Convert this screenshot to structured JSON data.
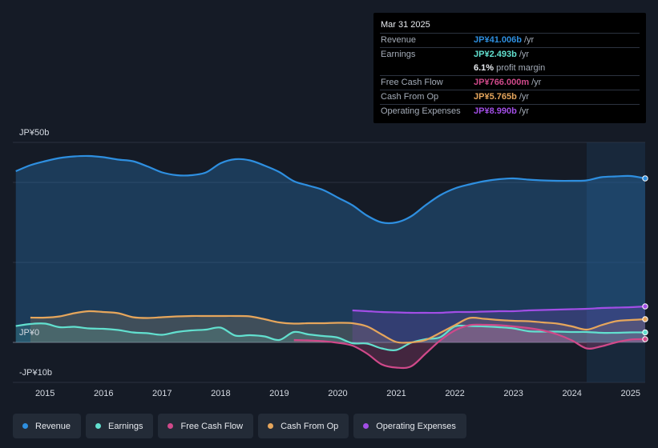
{
  "tooltip": {
    "date": "Mar 31 2025",
    "rows": [
      {
        "label": "Revenue",
        "value": "JP¥41.006b",
        "unit": "/yr",
        "color": "#2e8fe0"
      },
      {
        "label": "Earnings",
        "value": "JP¥2.493b",
        "unit": "/yr",
        "color": "#62e0cf"
      },
      {
        "label": "",
        "value": "6.1%",
        "unit": "profit margin",
        "color": "#e8ebf0"
      },
      {
        "label": "Free Cash Flow",
        "value": "JP¥766.000m",
        "unit": "/yr",
        "color": "#d0498a"
      },
      {
        "label": "Cash From Op",
        "value": "JP¥5.765b",
        "unit": "/yr",
        "color": "#e6a65c"
      },
      {
        "label": "Operating Expenses",
        "value": "JP¥8.990b",
        "unit": "/yr",
        "color": "#a24ee6"
      }
    ]
  },
  "legend": [
    {
      "label": "Revenue",
      "color": "#2e8fe0"
    },
    {
      "label": "Earnings",
      "color": "#62e0cf"
    },
    {
      "label": "Free Cash Flow",
      "color": "#d0498a"
    },
    {
      "label": "Cash From Op",
      "color": "#e6a65c"
    },
    {
      "label": "Operating Expenses",
      "color": "#a24ee6"
    }
  ],
  "chart_data": {
    "type": "area",
    "unit": "JP¥ billions",
    "y_tick_labels": [
      {
        "value": 50,
        "label": "JP¥50b"
      },
      {
        "value": 0,
        "label": "JP¥0"
      },
      {
        "value": -10,
        "label": "-JP¥10b"
      }
    ],
    "ylim": [
      -10,
      50
    ],
    "x_ticks": [
      {
        "value": 2015.0,
        "label": "2015"
      },
      {
        "value": 2016.0,
        "label": "2016"
      },
      {
        "value": 2017.0,
        "label": "2017"
      },
      {
        "value": 2018.0,
        "label": "2018"
      },
      {
        "value": 2019.0,
        "label": "2019"
      },
      {
        "value": 2020.0,
        "label": "2020"
      },
      {
        "value": 2021.0,
        "label": "2021"
      },
      {
        "value": 2022.0,
        "label": "2022"
      },
      {
        "value": 2023.0,
        "label": "2023"
      },
      {
        "value": 2024.0,
        "label": "2024"
      },
      {
        "value": 2025.0,
        "label": "2025"
      }
    ],
    "xlim": [
      2014.45,
      2025.25
    ],
    "forecast_start": 2024.25,
    "series": [
      {
        "name": "Revenue",
        "color": "#2e8fe0",
        "x": [
          2014.5,
          2014.75,
          2015.0,
          2015.25,
          2015.5,
          2015.75,
          2016.0,
          2016.25,
          2016.5,
          2016.75,
          2017.0,
          2017.25,
          2017.5,
          2017.75,
          2018.0,
          2018.25,
          2018.5,
          2018.75,
          2019.0,
          2019.25,
          2019.5,
          2019.75,
          2020.0,
          2020.25,
          2020.5,
          2020.75,
          2021.0,
          2021.25,
          2021.5,
          2021.75,
          2022.0,
          2022.25,
          2022.5,
          2022.75,
          2023.0,
          2023.25,
          2023.5,
          2023.75,
          2024.0,
          2024.25,
          2024.5,
          2024.75,
          2025.0,
          2025.25
        ],
        "values": [
          42.8,
          44.3,
          45.3,
          46.1,
          46.5,
          46.6,
          46.3,
          45.7,
          45.3,
          44.0,
          42.5,
          41.8,
          41.8,
          42.5,
          44.8,
          45.8,
          45.5,
          44.2,
          42.6,
          40.3,
          39.2,
          38.1,
          36.2,
          34.3,
          31.7,
          30.0,
          30.0,
          31.5,
          34.3,
          36.8,
          38.5,
          39.5,
          40.3,
          40.8,
          41.0,
          40.7,
          40.5,
          40.4,
          40.4,
          40.5,
          41.3,
          41.5,
          41.6,
          41.0
        ]
      },
      {
        "name": "Earnings",
        "color": "#62e0cf",
        "x": [
          2014.5,
          2014.75,
          2015.0,
          2015.25,
          2015.5,
          2015.75,
          2016.0,
          2016.25,
          2016.5,
          2016.75,
          2017.0,
          2017.25,
          2017.5,
          2017.75,
          2018.0,
          2018.25,
          2018.5,
          2018.75,
          2019.0,
          2019.25,
          2019.5,
          2019.75,
          2020.0,
          2020.25,
          2020.5,
          2020.75,
          2021.0,
          2021.25,
          2021.5,
          2021.75,
          2022.0,
          2022.25,
          2022.5,
          2022.75,
          2023.0,
          2023.25,
          2023.5,
          2023.75,
          2024.0,
          2024.25,
          2024.5,
          2024.75,
          2025.0,
          2025.25
        ],
        "values": [
          4.1,
          4.6,
          4.7,
          3.8,
          3.9,
          3.5,
          3.4,
          3.1,
          2.5,
          2.3,
          1.9,
          2.6,
          3.0,
          3.2,
          3.7,
          1.7,
          1.8,
          1.5,
          0.6,
          2.6,
          2.0,
          1.6,
          1.2,
          -0.2,
          -0.3,
          -1.5,
          -1.9,
          -0.1,
          0.8,
          1.3,
          4.0,
          4.1,
          4.0,
          3.8,
          3.5,
          2.8,
          2.7,
          2.7,
          2.6,
          2.6,
          2.4,
          2.4,
          2.5,
          2.5
        ]
      },
      {
        "name": "Free Cash Flow",
        "color": "#d0498a",
        "x": [
          2019.25,
          2019.5,
          2019.75,
          2020.0,
          2020.25,
          2020.5,
          2020.75,
          2021.0,
          2021.25,
          2021.5,
          2021.75,
          2022.0,
          2022.25,
          2022.5,
          2022.75,
          2023.0,
          2023.25,
          2023.5,
          2023.75,
          2024.0,
          2024.25,
          2024.5,
          2024.75,
          2025.0,
          2025.25
        ],
        "values": [
          0.6,
          0.5,
          0.3,
          -0.1,
          -0.8,
          -2.8,
          -5.5,
          -6.3,
          -6.0,
          -2.8,
          0.5,
          3.0,
          4.3,
          4.4,
          4.3,
          4.0,
          3.6,
          3.0,
          2.0,
          0.5,
          -1.5,
          -1.0,
          0.0,
          0.7,
          0.8
        ]
      },
      {
        "name": "Cash From Op",
        "color": "#e6a65c",
        "x": [
          2014.75,
          2015.0,
          2015.25,
          2015.5,
          2015.75,
          2016.0,
          2016.25,
          2016.5,
          2016.75,
          2017.0,
          2017.25,
          2017.5,
          2017.75,
          2018.0,
          2018.25,
          2018.5,
          2018.75,
          2019.0,
          2019.25,
          2019.5,
          2019.75,
          2020.0,
          2020.25,
          2020.5,
          2020.75,
          2021.0,
          2021.25,
          2021.5,
          2021.75,
          2022.0,
          2022.25,
          2022.5,
          2022.75,
          2023.0,
          2023.25,
          2023.5,
          2023.75,
          2024.0,
          2024.25,
          2024.5,
          2024.75,
          2025.0,
          2025.25
        ],
        "values": [
          6.2,
          6.2,
          6.5,
          7.3,
          7.8,
          7.6,
          7.3,
          6.3,
          6.1,
          6.3,
          6.5,
          6.6,
          6.6,
          6.6,
          6.6,
          6.5,
          5.8,
          5.0,
          4.7,
          4.8,
          4.8,
          4.9,
          4.8,
          4.0,
          2.0,
          0.1,
          0.0,
          0.6,
          2.4,
          4.3,
          6.1,
          5.9,
          5.6,
          5.4,
          5.3,
          5.0,
          4.7,
          4.0,
          3.2,
          4.3,
          5.3,
          5.6,
          5.8
        ]
      },
      {
        "name": "Operating Expenses",
        "color": "#a24ee6",
        "x": [
          2020.25,
          2020.5,
          2020.75,
          2021.0,
          2021.25,
          2021.5,
          2021.75,
          2022.0,
          2022.25,
          2022.5,
          2022.75,
          2023.0,
          2023.25,
          2023.5,
          2023.75,
          2024.0,
          2024.25,
          2024.5,
          2024.75,
          2025.0,
          2025.25
        ],
        "values": [
          8.0,
          7.8,
          7.6,
          7.5,
          7.4,
          7.4,
          7.4,
          7.6,
          7.6,
          7.7,
          7.8,
          7.8,
          8.0,
          8.1,
          8.2,
          8.3,
          8.4,
          8.6,
          8.7,
          8.8,
          9.0
        ]
      }
    ]
  }
}
